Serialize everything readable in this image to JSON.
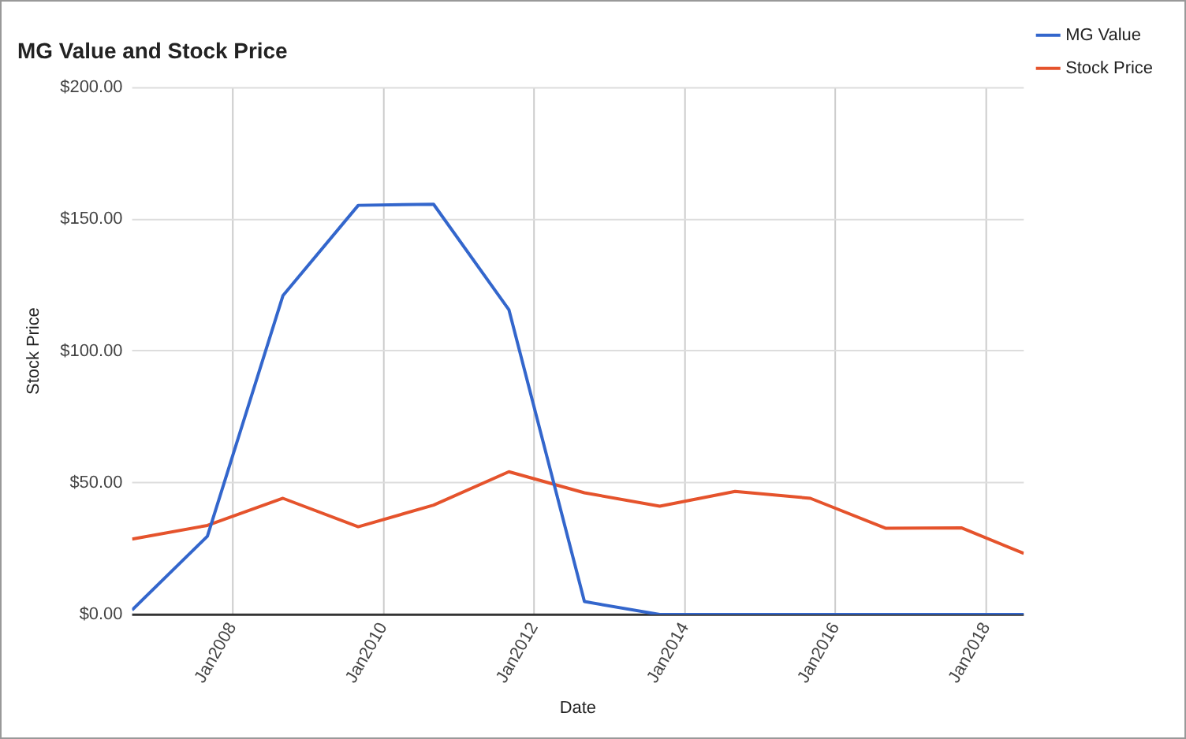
{
  "chart_data": {
    "type": "line",
    "title": "MG Value and Stock Price",
    "xlabel": "Date",
    "ylabel": "Stock Price",
    "x": [
      "2006-09",
      "2007-09",
      "2008-09",
      "2009-09",
      "2010-09",
      "2011-09",
      "2012-09",
      "2013-09",
      "2014-09",
      "2015-09",
      "2016-09",
      "2017-09",
      "2018-07"
    ],
    "series": [
      {
        "name": "MG Value",
        "color": "#3366cc",
        "values": [
          1.7,
          29.7,
          121,
          155.3,
          155.7,
          115.7,
          4.9,
          0,
          0,
          0,
          0,
          0,
          0
        ]
      },
      {
        "name": "Stock Price",
        "color": "#e5532c",
        "values": [
          28.6,
          33.8,
          44.1,
          33.3,
          41.5,
          54.2,
          46.2,
          41.1,
          46.7,
          44.1,
          32.7,
          32.9,
          23.2
        ]
      }
    ],
    "xlim": [
      "2006-09",
      "2018-07"
    ],
    "xticks": [
      {
        "value": "2008-01",
        "label": "Jan2008"
      },
      {
        "value": "2010-01",
        "label": "Jan2010"
      },
      {
        "value": "2012-01",
        "label": "Jan2012"
      },
      {
        "value": "2014-01",
        "label": "Jan2014"
      },
      {
        "value": "2016-01",
        "label": "Jan2016"
      },
      {
        "value": "2018-01",
        "label": "Jan2018"
      }
    ],
    "ylim": [
      0,
      200
    ],
    "yticks": [
      {
        "value": 0,
        "label": "$0.00"
      },
      {
        "value": 50,
        "label": "$50.00"
      },
      {
        "value": 100,
        "label": "$100.00"
      },
      {
        "value": 150,
        "label": "$150.00"
      },
      {
        "value": 200,
        "label": "$200.00"
      }
    ],
    "grid": true,
    "legend": "top right",
    "marker": "none",
    "line_style": "solid"
  }
}
